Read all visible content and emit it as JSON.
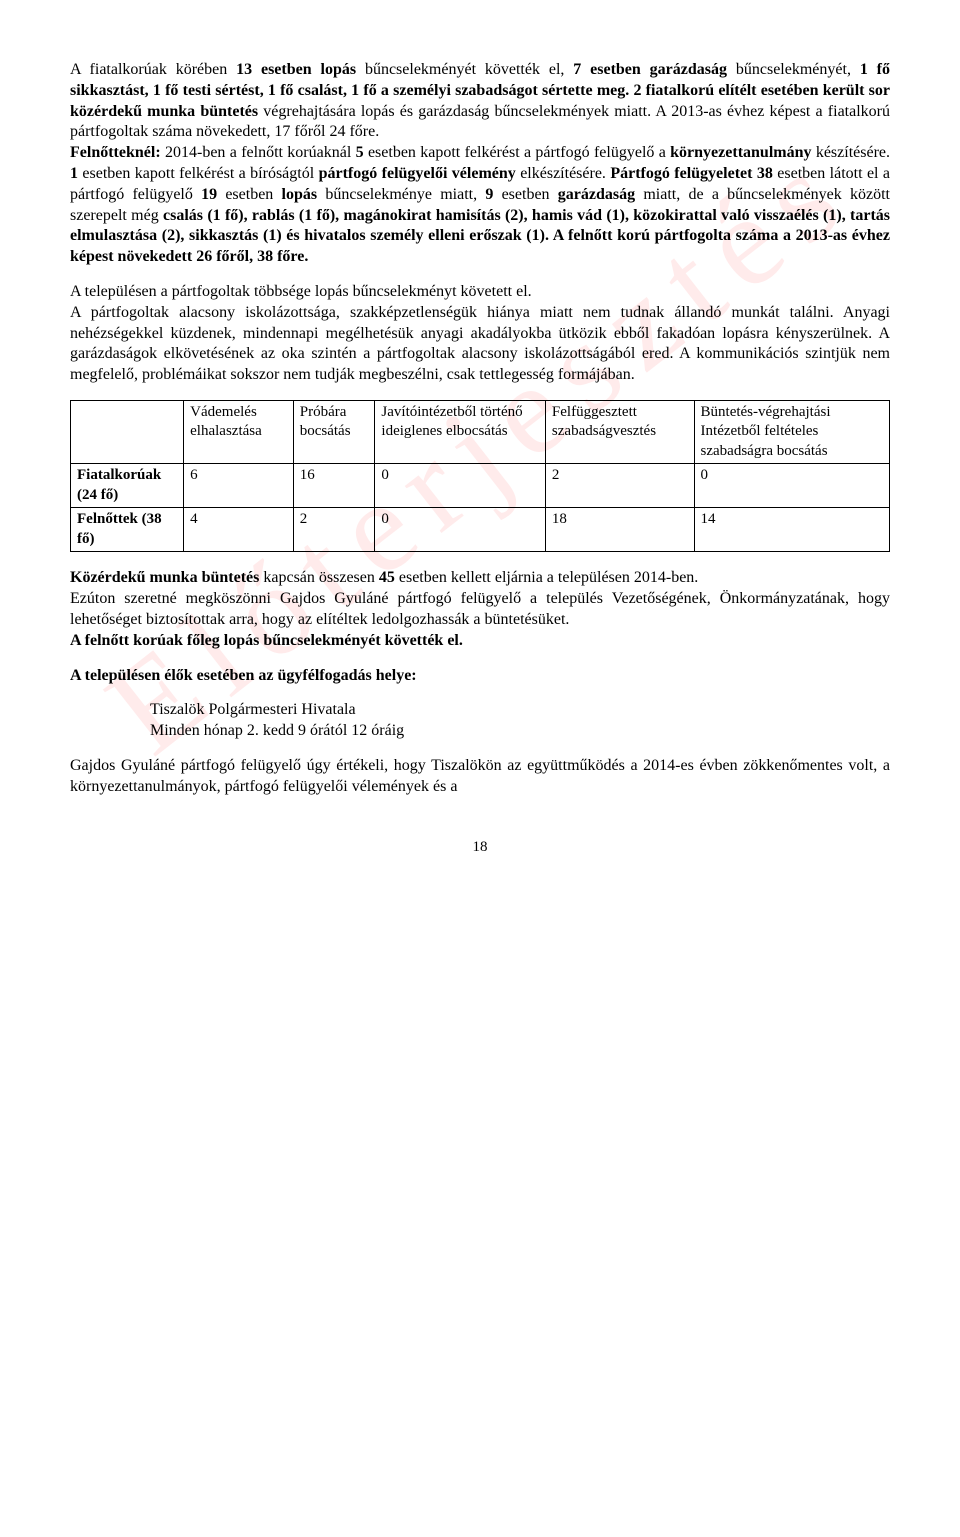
{
  "watermark": "Előterjesztés",
  "para1_a": "A fiatalkorúak körében ",
  "para1_b": "13 esetben lopás",
  "para1_c": " bűncselekményét követték el, ",
  "para1_d": "7 esetben garázdaság",
  "para1_e": " bűncselekményét, ",
  "para1_f": "1 fő sikkasztást, 1 fő testi sértést, 1 fő csalást, 1 fő a személyi szabadságot sértette meg. 2 fiatalkorú elítélt esetében került sor közérdekű munka büntetés",
  "para1_g": " végrehajtására lopás és garázdaság bűncselekmények miatt. A 2013-as évhez képest a fiatalkorú pártfogoltak száma növekedett, 17 főről 24 főre.",
  "para1_h": "Felnőtteknél:",
  "para1_i": " 2014-ben a felnőtt korúaknál ",
  "para1_j": "5",
  "para1_k": " esetben kapott felkérést a pártfogó felügyelő a ",
  "para1_l": "környezettanulmány",
  "para1_m": " készítésére. ",
  "para1_n": "1",
  "para1_o": " esetben kapott felkérést a bíróságtól ",
  "para1_p": "pártfogó felügyelői vélemény",
  "para1_q": " elkészítésére. ",
  "para1_r": "Pártfogó felügyeletet 38",
  "para1_s": " esetben látott el a pártfogó felügyelő ",
  "para1_t": "19",
  "para1_u": " esetben ",
  "para1_v": "lopás",
  "para1_w": " bűncselekménye miatt, ",
  "para1_x": "9",
  "para1_y": " esetben ",
  "para1_z": "garázdaság",
  "para1_aa": " miatt, de a bűncselekmények között szerepelt még ",
  "para1_ab": "csalás (1 fő), rablás (1 fő), magánokirat hamisítás (2), hamis vád (1), közokirattal való visszaélés (1), tartás elmulasztása (2), sikkasztás (1) és hivatalos személy elleni erőszak (1). A felnőtt korú pártfogolta száma a 2013-as évhez képest növekedett 26 főről, 38 főre.",
  "para2_l1": "A településen a pártfogoltak többsége lopás bűncselekményt követett el.",
  "para2_l2": "A pártfogoltak alacsony iskolázottsága, szakképzetlenségük hiánya miatt nem tudnak állandó munkát találni. Anyagi nehézségekkel küzdenek, mindennapi megélhetésük anyagi akadályokba ütközik ebből fakadóan lopásra kényszerülnek. A garázdaságok elkövetésének az oka szintén a pártfogoltak alacsony iskolázottságából ered. A kommunikációs szintjük nem megfelelő, problémáikat sokszor nem tudják megbeszélni, csak tettlegesség formájában.",
  "table": {
    "headers": [
      "",
      "Vádemelés elhalasztása",
      "Próbára bocsátás",
      "Javítóintézetből történő ideiglenes elbocsátás",
      "Felfüggesztett szabadságvesztés",
      "Büntetés-végrehajtási Intézetből feltételes szabadságra bocsátás"
    ],
    "rows": [
      {
        "label": "Fiatalkorúak (24 fő)",
        "cells": [
          "6",
          "16",
          "0",
          "2",
          "0"
        ]
      },
      {
        "label": "Felnőttek (38 fő)",
        "cells": [
          "4",
          "2",
          "0",
          "18",
          "14"
        ]
      }
    ]
  },
  "para3_a": "Közérdekű munka büntetés ",
  "para3_b": "kapcsán összesen ",
  "para3_c": "45 ",
  "para3_d": "esetben kellett eljárnia a településen 2014-ben.",
  "para3_e": "Ezúton szeretné megköszönni Gajdos Gyuláné pártfogó felügyelő a település Vezetőségének, Önkormányzatának, hogy lehetőséget biztosítottak arra, hogy az elítéltek ledolgozhassák a büntetésüket.",
  "para3_f": "A felnőtt korúak főleg lopás bűncselekményét követték el.",
  "heading_loc": "A településen élők esetében az ügyfélfogadás helye:",
  "loc_l1": "Tiszalök Polgármesteri Hivatala",
  "loc_l2": "Minden hónap 2. kedd 9 órától 12 óráig",
  "para4": "Gajdos Gyuláné pártfogó felügyelő úgy értékeli, hogy Tiszalökön az együttműködés a 2014-es évben zökkenőmentes volt, a környezettanulmányok, pártfogó felügyelői vélemények és a",
  "pagenum": "18"
}
